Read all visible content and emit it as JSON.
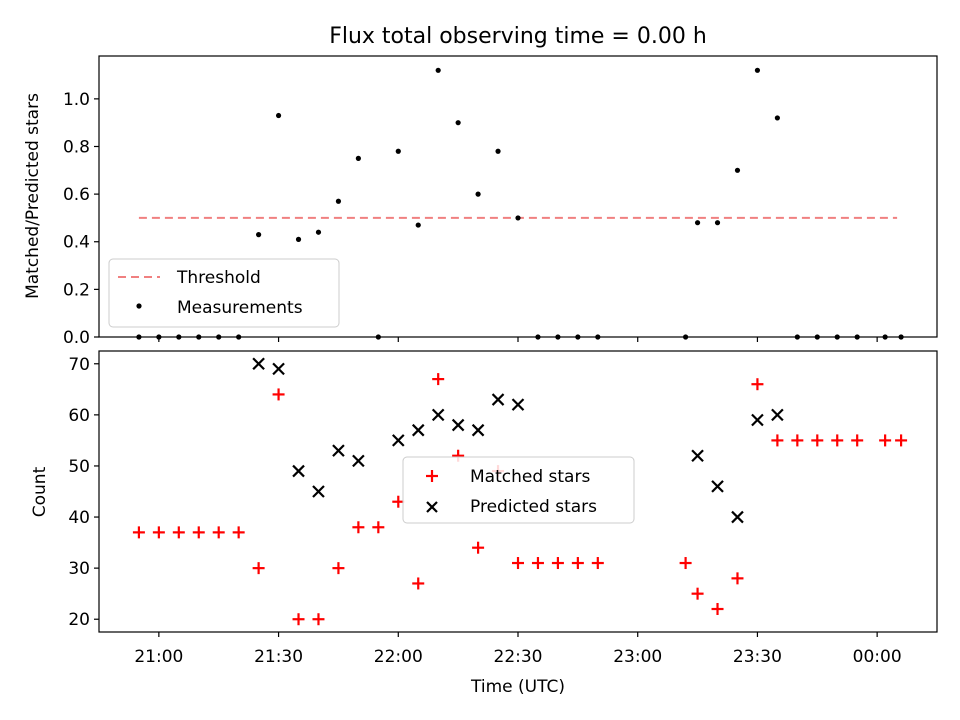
{
  "figure": {
    "title": "Flux total observing time = 0.00 h",
    "xlabel": "Time (UTC)",
    "x_tick_labels": [
      "21:00",
      "21:30",
      "22:00",
      "22:30",
      "23:00",
      "23:30",
      "00:00"
    ]
  },
  "chart_data": [
    {
      "type": "scatter",
      "panel": "top",
      "ylabel": "Matched/Predicted stars",
      "ylim": [
        0,
        1.18
      ],
      "y_ticks": [
        0.0,
        0.2,
        0.4,
        0.6,
        0.8,
        1.0
      ],
      "y_tick_labels": [
        "0.0",
        "0.2",
        "0.4",
        "0.6",
        "0.8",
        "1.0"
      ],
      "x_axis": "time (HH:MM UTC)",
      "xlim": [
        "20:45",
        "24:15"
      ],
      "legend_position": "lower-left",
      "legend": [
        "Threshold",
        "Measurements"
      ],
      "threshold": {
        "name": "Threshold",
        "value": 0.5,
        "x_start": "20:55",
        "x_end": "24:05",
        "color": "#f08080",
        "style": "dashed"
      },
      "series": [
        {
          "name": "Measurements",
          "color": "#000000",
          "marker": "dot",
          "x": [
            "20:55",
            "21:00",
            "21:05",
            "21:10",
            "21:15",
            "21:20",
            "21:25",
            "21:30",
            "21:35",
            "21:40",
            "21:45",
            "21:50",
            "21:55",
            "22:00",
            "22:05",
            "22:10",
            "22:15",
            "22:20",
            "22:25",
            "22:30",
            "22:35",
            "22:40",
            "22:45",
            "22:50",
            "23:12",
            "23:15",
            "23:20",
            "23:25",
            "23:30",
            "23:35",
            "23:40",
            "23:45",
            "23:50",
            "23:55",
            "24:02",
            "24:06"
          ],
          "y": [
            0,
            0,
            0,
            0,
            0,
            0,
            0.43,
            0.93,
            0.41,
            0.44,
            0.57,
            0.75,
            0,
            0.78,
            0.47,
            1.12,
            0.9,
            0.6,
            0.78,
            0.5,
            0,
            0,
            0,
            0,
            0,
            0.48,
            0.48,
            0.7,
            1.12,
            0.92,
            0,
            0,
            0,
            0,
            0,
            0
          ]
        }
      ]
    },
    {
      "type": "scatter",
      "panel": "bottom",
      "ylabel": "Count",
      "ylim": [
        17.5,
        72.5
      ],
      "y_ticks": [
        20,
        30,
        40,
        50,
        60,
        70
      ],
      "y_tick_labels": [
        "20",
        "30",
        "40",
        "50",
        "60",
        "70"
      ],
      "x_axis": "time (HH:MM UTC)",
      "xlim": [
        "20:45",
        "24:15"
      ],
      "legend_position": "center",
      "legend": [
        "Matched stars",
        "Predicted stars"
      ],
      "series": [
        {
          "name": "Matched stars",
          "color": "#ff0000",
          "marker": "plus",
          "x": [
            "20:55",
            "21:00",
            "21:05",
            "21:10",
            "21:15",
            "21:20",
            "21:25",
            "21:30",
            "21:35",
            "21:40",
            "21:45",
            "21:50",
            "21:55",
            "22:00",
            "22:05",
            "22:10",
            "22:15",
            "22:20",
            "22:25",
            "22:30",
            "22:35",
            "22:40",
            "22:45",
            "22:50",
            "23:12",
            "23:15",
            "23:20",
            "23:25",
            "23:30",
            "23:35",
            "23:40",
            "23:45",
            "23:50",
            "23:55",
            "24:02",
            "24:06"
          ],
          "y": [
            37,
            37,
            37,
            37,
            37,
            37,
            30,
            64,
            20,
            20,
            30,
            38,
            38,
            43,
            27,
            67,
            52,
            34,
            49,
            31,
            31,
            31,
            31,
            31,
            31,
            25,
            22,
            28,
            66,
            55,
            55,
            55,
            55,
            55,
            55,
            55
          ]
        },
        {
          "name": "Predicted stars",
          "color": "#000000",
          "marker": "x",
          "x": [
            "21:25",
            "21:30",
            "21:35",
            "21:40",
            "21:45",
            "21:50",
            "22:00",
            "22:05",
            "22:10",
            "22:15",
            "22:20",
            "22:25",
            "22:30",
            "23:15",
            "23:20",
            "23:25",
            "23:30",
            "23:35"
          ],
          "y": [
            70,
            69,
            49,
            45,
            53,
            51,
            55,
            57,
            60,
            58,
            57,
            63,
            62,
            52,
            46,
            40,
            59,
            60
          ]
        }
      ]
    }
  ]
}
